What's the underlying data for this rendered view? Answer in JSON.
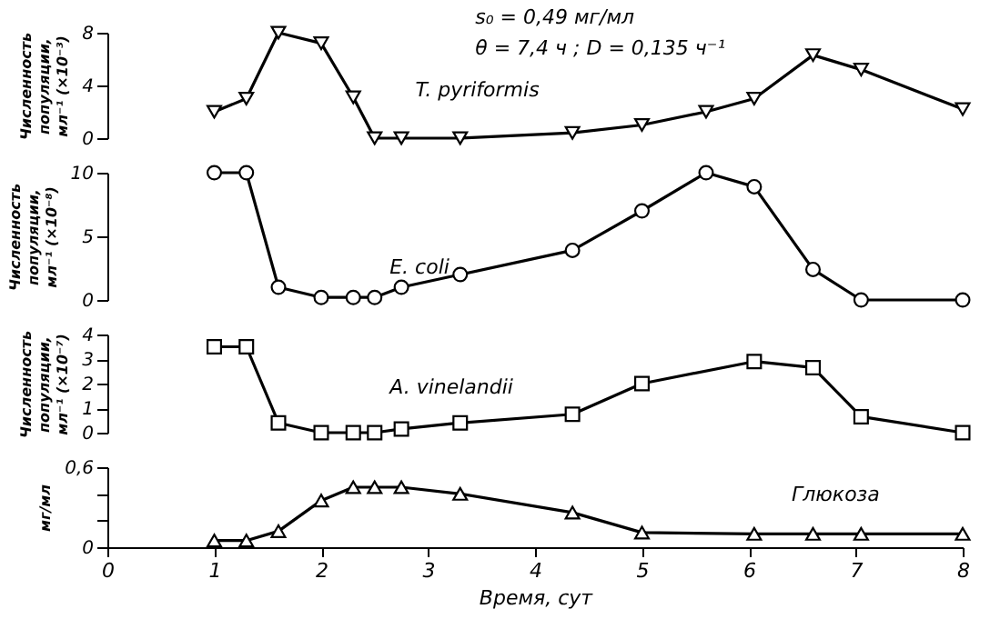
{
  "chart_data": [
    {
      "type": "line",
      "ylabel": "Численность популяции, мл⁻¹ (×10⁻³)",
      "annotations": [
        "s₀ = 0,49 мг/мл",
        "θ = 7,4 ч ; D = 0,135 ч⁻¹"
      ],
      "xlim": [
        0,
        8
      ],
      "ylim": [
        0,
        8
      ],
      "yticks": [
        0,
        4,
        8
      ],
      "tick_labels": "y",
      "grid": false,
      "line_style": "solid",
      "series": [
        {
          "name": "T. pyriformis",
          "color": "#000000",
          "marker": "triangle-down",
          "x": [
            1.0,
            1.3,
            1.6,
            2.0,
            2.3,
            2.5,
            2.75,
            3.3,
            4.35,
            5.0,
            5.6,
            6.05,
            6.6,
            7.05,
            8.0
          ],
          "values": [
            2,
            3,
            8,
            7.2,
            3.1,
            0,
            0,
            0,
            0.4,
            1,
            2,
            3,
            6.3,
            5.2,
            2.2
          ]
        }
      ]
    },
    {
      "type": "line",
      "ylabel": "Численность популяции, мл⁻¹ (×10⁻⁸)",
      "xlim": [
        0,
        8
      ],
      "ylim": [
        0,
        10
      ],
      "yticks": [
        0,
        5,
        10
      ],
      "tick_labels": "y",
      "grid": false,
      "line_style": "solid",
      "series": [
        {
          "name": "E. coli",
          "color": "#000000",
          "marker": "circle",
          "x": [
            1.0,
            1.3,
            1.6,
            2.0,
            2.3,
            2.5,
            2.75,
            3.3,
            4.35,
            5.0,
            5.6,
            6.05,
            6.6,
            7.05,
            8.0
          ],
          "values": [
            10,
            10,
            1,
            0.2,
            0.2,
            0.2,
            1,
            2,
            3.9,
            7,
            10,
            8.9,
            2.4,
            0,
            0
          ]
        }
      ]
    },
    {
      "type": "line",
      "ylabel": "Численность популяции, мл⁻¹ (×10⁻⁷)",
      "xlim": [
        0,
        8
      ],
      "ylim": [
        0,
        4
      ],
      "yticks": [
        0,
        1,
        2,
        3,
        4
      ],
      "tick_labels": "y",
      "grid": false,
      "line_style": "solid",
      "series": [
        {
          "name": "A. vinelandii",
          "color": "#000000",
          "marker": "square",
          "x": [
            1.0,
            1.3,
            1.6,
            2.0,
            2.3,
            2.5,
            2.75,
            3.3,
            4.35,
            5.0,
            6.05,
            6.6,
            7.05,
            8.0
          ],
          "values": [
            3.5,
            3.5,
            0.4,
            0,
            0,
            0,
            0.15,
            0.4,
            0.75,
            2,
            2.9,
            2.65,
            0.65,
            0
          ]
        }
      ]
    },
    {
      "type": "line",
      "ylabel": "мг/мл",
      "xlabel": "Время, сут",
      "xlim": [
        0,
        8
      ],
      "xticks": [
        0,
        1,
        2,
        3,
        4,
        5,
        6,
        7,
        8
      ],
      "ylim": [
        0,
        0.6
      ],
      "yticks": [
        0,
        {
          "value": 0.2,
          "label": null
        },
        {
          "value": 0.4,
          "label": null
        },
        {
          "value": 0.6,
          "label": "0,6"
        }
      ],
      "grid": false,
      "line_style": "solid",
      "series": [
        {
          "name": "Глюкоза",
          "color": "#000000",
          "marker": "triangle",
          "x": [
            1.0,
            1.3,
            1.6,
            2.0,
            2.3,
            2.5,
            2.75,
            3.3,
            4.35,
            5.0,
            6.05,
            6.6,
            7.05,
            8.0
          ],
          "values": [
            0.05,
            0.05,
            0.12,
            0.35,
            0.45,
            0.45,
            0.45,
            0.4,
            0.26,
            0.11,
            0.1,
            0.1,
            0.1,
            0.1
          ]
        }
      ]
    }
  ]
}
